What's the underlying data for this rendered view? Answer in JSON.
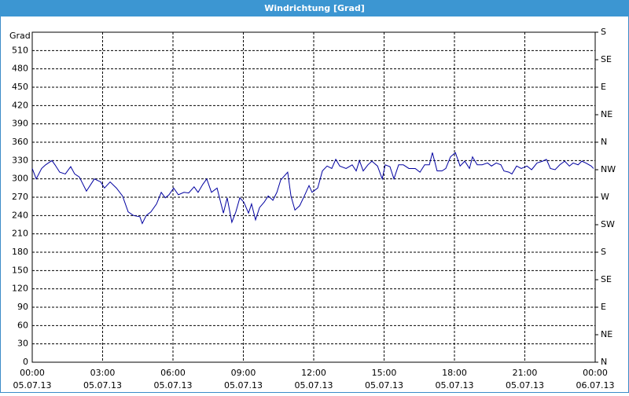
{
  "chart_data": {
    "type": "line",
    "title": "Windrichtung [Grad]",
    "ylabel": "Grad",
    "xlim": [
      0,
      24
    ],
    "xticks": [
      {
        "value": 0,
        "label": "00:00",
        "date": "05.07.13"
      },
      {
        "value": 3,
        "label": "03:00",
        "date": "05.07.13"
      },
      {
        "value": 6,
        "label": "06:00",
        "date": "05.07.13"
      },
      {
        "value": 9,
        "label": "09:00",
        "date": "05.07.13"
      },
      {
        "value": 12,
        "label": "12:00",
        "date": "05.07.13"
      },
      {
        "value": 15,
        "label": "15:00",
        "date": "05.07.13"
      },
      {
        "value": 18,
        "label": "18:00",
        "date": "05.07.13"
      },
      {
        "value": 21,
        "label": "21:00",
        "date": "05.07.13"
      },
      {
        "value": 24,
        "label": "00:00",
        "date": "06.07.13"
      }
    ],
    "ylim": [
      0,
      540
    ],
    "yticks": [
      0,
      30,
      60,
      90,
      120,
      150,
      180,
      210,
      240,
      270,
      300,
      330,
      360,
      390,
      420,
      450,
      480,
      510
    ],
    "y2lim": [
      0,
      540
    ],
    "y2ticks": [
      {
        "value": 0,
        "label": "N"
      },
      {
        "value": 45,
        "label": "NE"
      },
      {
        "value": 90,
        "label": "E"
      },
      {
        "value": 135,
        "label": "SE"
      },
      {
        "value": 180,
        "label": "S"
      },
      {
        "value": 225,
        "label": "SW"
      },
      {
        "value": 270,
        "label": "W"
      },
      {
        "value": 315,
        "label": "NW"
      },
      {
        "value": 360,
        "label": "N"
      },
      {
        "value": 405,
        "label": "NE"
      },
      {
        "value": 450,
        "label": "E"
      },
      {
        "value": 495,
        "label": "SE"
      },
      {
        "value": 540,
        "label": "S"
      }
    ],
    "grid": true,
    "series": [
      {
        "name": "Windrichtung",
        "color": "#0000a0",
        "x": [
          0,
          0.17,
          0.4,
          0.57,
          0.84,
          0.97,
          1.17,
          1.41,
          1.64,
          1.81,
          2.01,
          2.31,
          2.65,
          2.92,
          3.08,
          3.32,
          3.59,
          3.85,
          4.09,
          4.32,
          4.59,
          4.69,
          4.86,
          5.06,
          5.3,
          5.5,
          5.67,
          5.83,
          6.03,
          6.23,
          6.47,
          6.67,
          6.9,
          7.07,
          7.27,
          7.44,
          7.64,
          7.88,
          8.01,
          8.15,
          8.31,
          8.51,
          8.68,
          8.85,
          9.02,
          9.22,
          9.35,
          9.52,
          9.69,
          9.89,
          10.06,
          10.26,
          10.43,
          10.59,
          10.89,
          11.03,
          11.2,
          11.4,
          11.6,
          11.8,
          11.93,
          12.17,
          12.37,
          12.57,
          12.77,
          12.94,
          13.11,
          13.38,
          13.64,
          13.81,
          13.95,
          14.11,
          14.31,
          14.48,
          14.72,
          14.92,
          15.05,
          15.25,
          15.42,
          15.62,
          15.82,
          16.06,
          16.33,
          16.53,
          16.73,
          16.93,
          17.06,
          17.26,
          17.47,
          17.63,
          17.83,
          18.04,
          18.24,
          18.44,
          18.64,
          18.77,
          18.97,
          19.18,
          19.41,
          19.58,
          19.78,
          19.98,
          20.11,
          20.32,
          20.45,
          20.65,
          20.85,
          21.09,
          21.29,
          21.52,
          21.76,
          21.92,
          22.09,
          22.29,
          22.49,
          22.7,
          22.9,
          23.06,
          23.27,
          23.43,
          23.6,
          23.83,
          23.93
        ],
        "values": [
          317,
          300,
          317,
          323,
          330,
          323,
          311,
          308,
          320,
          308,
          303,
          280,
          300,
          295,
          285,
          295,
          285,
          272,
          246,
          240,
          238,
          227,
          240,
          246,
          259,
          278,
          269,
          274,
          285,
          274,
          278,
          277,
          287,
          278,
          291,
          300,
          278,
          285,
          265,
          244,
          269,
          229,
          246,
          269,
          262,
          244,
          259,
          233,
          253,
          262,
          272,
          265,
          278,
          298,
          311,
          272,
          249,
          256,
          272,
          289,
          278,
          285,
          313,
          321,
          317,
          332,
          321,
          317,
          323,
          313,
          330,
          313,
          323,
          329,
          321,
          300,
          323,
          320,
          300,
          323,
          323,
          317,
          317,
          311,
          323,
          323,
          343,
          313,
          313,
          317,
          336,
          343,
          321,
          329,
          317,
          336,
          323,
          323,
          326,
          321,
          326,
          323,
          313,
          311,
          308,
          321,
          317,
          321,
          315,
          326,
          329,
          332,
          317,
          315,
          323,
          329,
          321,
          326,
          323,
          329,
          326,
          321,
          317
        ]
      }
    ]
  }
}
